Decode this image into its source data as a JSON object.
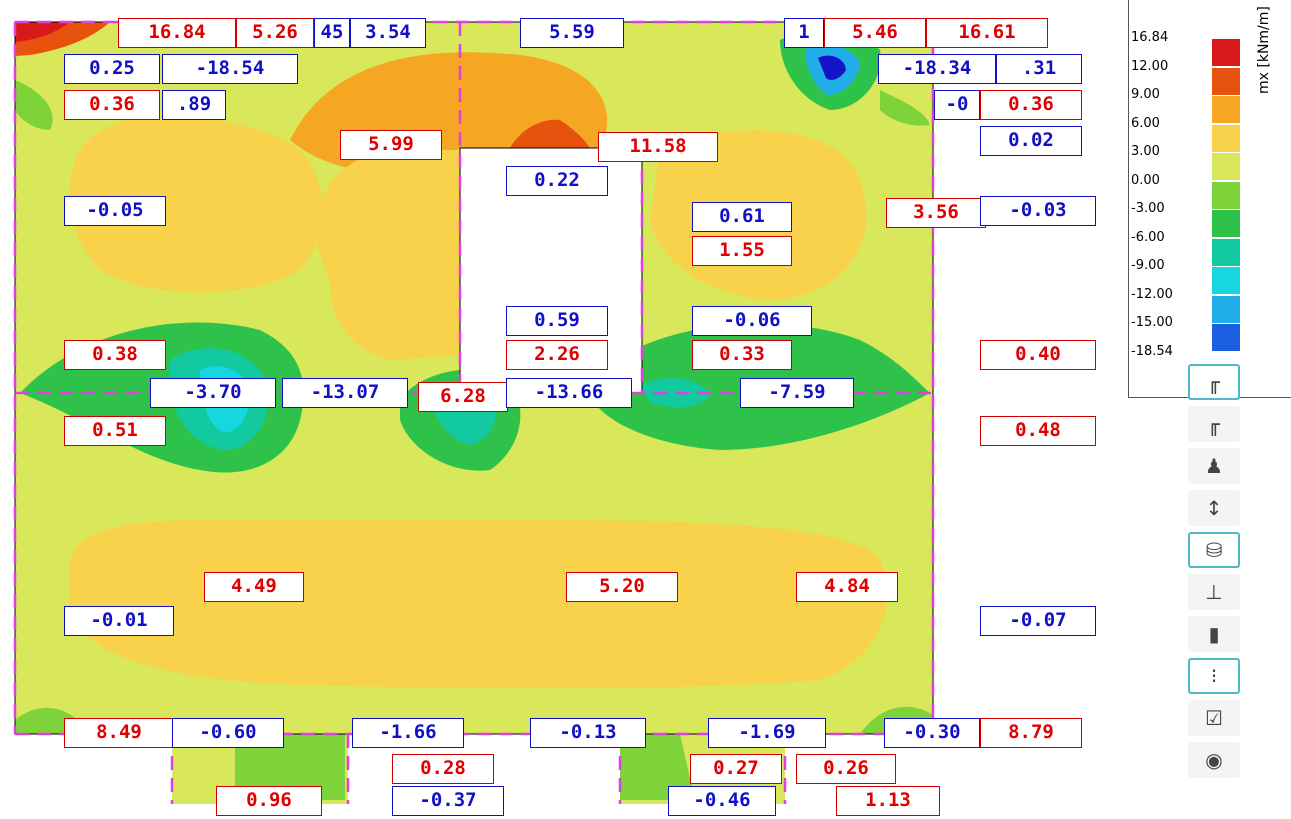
{
  "labels": [
    {
      "text": "16.84",
      "neg": false
    },
    {
      "text": "5.26",
      "neg": false
    },
    {
      "text": "45",
      "neg": true
    },
    {
      "text": "3.54",
      "neg": true
    },
    {
      "text": "5.59",
      "neg": true
    },
    {
      "text": "1",
      "neg": true
    },
    {
      "text": "5.46",
      "neg": false
    },
    {
      "text": "16.61",
      "neg": false
    },
    {
      "text": "0.25",
      "neg": true
    },
    {
      "text": "-18.54",
      "neg": true
    },
    {
      "text": "-18.34",
      "neg": true
    },
    {
      "text": ".31",
      "neg": true
    },
    {
      "text": "0.36",
      "neg": false
    },
    {
      "text": ".89",
      "neg": true
    },
    {
      "text": "-0",
      "neg": true
    },
    {
      "text": "0.36",
      "neg": false
    },
    {
      "text": "5.99",
      "neg": false
    },
    {
      "text": "11.58",
      "neg": false
    },
    {
      "text": "0.02",
      "neg": true
    },
    {
      "text": "0.22",
      "neg": true
    },
    {
      "text": "-0.05",
      "neg": true
    },
    {
      "text": "0.61",
      "neg": true
    },
    {
      "text": "3.56",
      "neg": false
    },
    {
      "text": "-0.03",
      "neg": true
    },
    {
      "text": "1.55",
      "neg": false
    },
    {
      "text": "0.59",
      "neg": true
    },
    {
      "text": "-0.06",
      "neg": true
    },
    {
      "text": "0.38",
      "neg": false
    },
    {
      "text": "2.26",
      "neg": false
    },
    {
      "text": "0.33",
      "neg": false
    },
    {
      "text": "0.40",
      "neg": false
    },
    {
      "text": "-3.70",
      "neg": true
    },
    {
      "text": "-13.07",
      "neg": true
    },
    {
      "text": "6.28",
      "neg": false
    },
    {
      "text": "-13.66",
      "neg": true
    },
    {
      "text": "-7.59",
      "neg": true
    },
    {
      "text": "0.51",
      "neg": false
    },
    {
      "text": "0.48",
      "neg": false
    },
    {
      "text": "4.49",
      "neg": false
    },
    {
      "text": "5.20",
      "neg": false
    },
    {
      "text": "4.84",
      "neg": false
    },
    {
      "text": "-0.01",
      "neg": true
    },
    {
      "text": "-0.07",
      "neg": true
    },
    {
      "text": "8.49",
      "neg": false
    },
    {
      "text": "-0.60",
      "neg": true
    },
    {
      "text": "-1.66",
      "neg": true
    },
    {
      "text": "-0.13",
      "neg": true
    },
    {
      "text": "-1.69",
      "neg": true
    },
    {
      "text": "-0.30",
      "neg": true
    },
    {
      "text": "8.79",
      "neg": false
    },
    {
      "text": "0.28",
      "neg": false
    },
    {
      "text": "0.27",
      "neg": false
    },
    {
      "text": "0.26",
      "neg": false
    },
    {
      "text": "0.96",
      "neg": false
    },
    {
      "text": "-0.37",
      "neg": true
    },
    {
      "text": "-0.46",
      "neg": true
    },
    {
      "text": "1.13",
      "neg": false
    }
  ],
  "legend": {
    "title": "mx [kNm/m]",
    "items": [
      {
        "value": "16.84",
        "color": "#d7191c"
      },
      {
        "value": "12.00",
        "color": "#e8520f"
      },
      {
        "value": "9.00",
        "color": "#f5a623"
      },
      {
        "value": "6.00",
        "color": "#f7d24a"
      },
      {
        "value": "3.00",
        "color": "#d8e85a"
      },
      {
        "value": "0.00",
        "color": "#7ed23a"
      },
      {
        "value": "-3.00",
        "color": "#2fc24a"
      },
      {
        "value": "-6.00",
        "color": "#13c9a0"
      },
      {
        "value": "-9.00",
        "color": "#16d6e0"
      },
      {
        "value": "-12.00",
        "color": "#21aee8"
      },
      {
        "value": "-15.00",
        "color": "#1b5fe0"
      },
      {
        "value": "-18.54",
        "color": "#1414c8"
      }
    ]
  },
  "toolbar": [
    {
      "icon": "member-display-icon",
      "glyph": "╓",
      "active": true
    },
    {
      "icon": "member-results-icon",
      "glyph": "╓",
      "active": false
    },
    {
      "icon": "support-reactions-icon",
      "glyph": "♟",
      "active": false
    },
    {
      "icon": "load-distribution-icon",
      "glyph": "↕",
      "active": false
    },
    {
      "icon": "database-icon",
      "glyph": "⛁",
      "active": true
    },
    {
      "icon": "nodal-load-icon",
      "glyph": "⊥",
      "active": false
    },
    {
      "icon": "line-load-icon",
      "glyph": "▮",
      "active": false
    },
    {
      "icon": "mesh-points-icon",
      "glyph": "⁝",
      "active": true
    },
    {
      "icon": "check-selection-icon",
      "glyph": "☑",
      "active": false
    },
    {
      "icon": "visibility-icon",
      "glyph": "◉",
      "active": false
    }
  ]
}
